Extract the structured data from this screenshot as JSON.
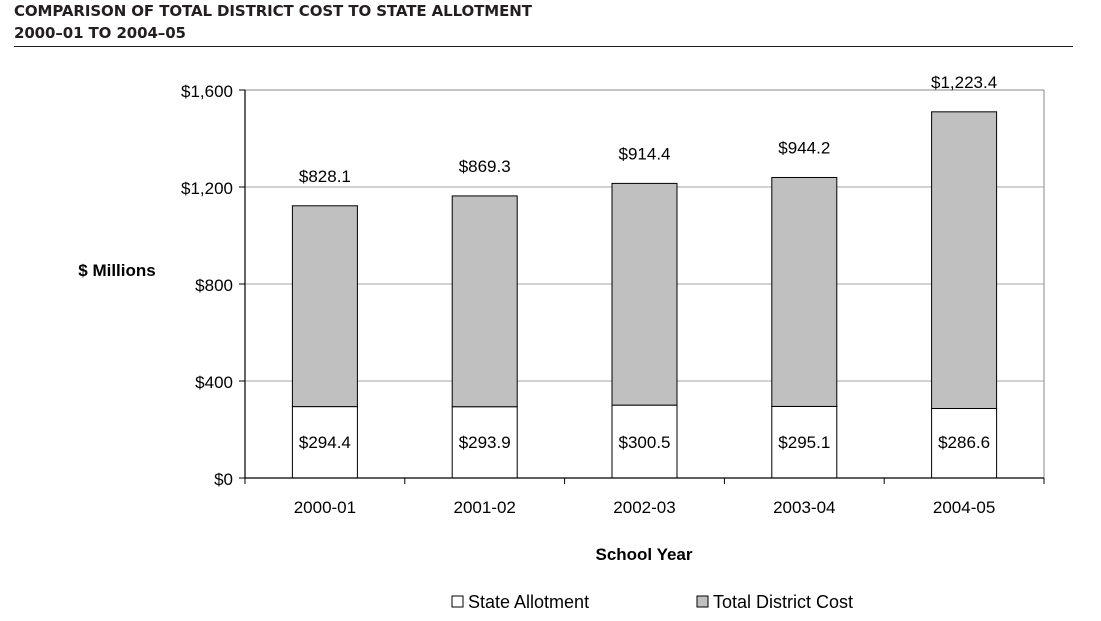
{
  "header": {
    "title": "COMPARISON OF TOTAL DISTRICT COST TO STATE ALLOTMENT",
    "subtitle": "2000–01 TO 2004–05"
  },
  "chart_data": {
    "type": "bar",
    "stacked": true,
    "categories": [
      "2000-01",
      "2001-02",
      "2002-03",
      "2003-04",
      "2004-05"
    ],
    "series": [
      {
        "name": "State Allotment",
        "values": [
          294.4,
          293.9,
          300.5,
          295.1,
          286.6
        ],
        "labels": [
          "$294.4",
          "$293.9",
          "$300.5",
          "$295.1",
          "$286.6"
        ],
        "color": "#ffffff"
      },
      {
        "name": "Total District Cost",
        "values": [
          828.1,
          869.3,
          914.4,
          944.2,
          1223.4
        ],
        "labels": [
          "$828.1",
          "$869.3",
          "$914.4",
          "$944.2",
          "$1,223.4"
        ],
        "color": "#c0c0c0"
      }
    ],
    "xlabel": "School Year",
    "ylabel": "$ Millions",
    "ylim": [
      0,
      1600
    ],
    "yticks": [
      0,
      400,
      800,
      1200,
      1600
    ],
    "ytick_labels": [
      "$0",
      "$400",
      "$800",
      "$1,200",
      "$1,600"
    ],
    "grid": true,
    "legend": [
      "State Allotment",
      "Total District Cost"
    ],
    "legend_position": "bottom"
  }
}
